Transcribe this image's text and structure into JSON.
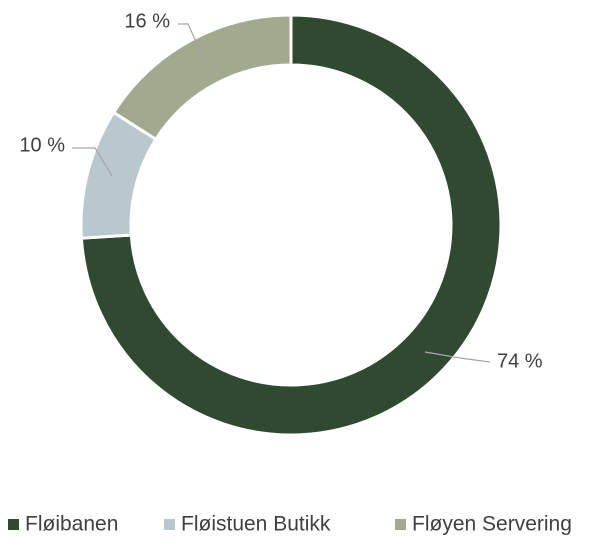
{
  "chart_data": {
    "type": "donut",
    "categories": [
      "Fløibanen",
      "Fløistuen Butikk",
      "Fløyen Servering"
    ],
    "values": [
      74,
      10,
      16
    ],
    "value_labels": [
      "74 %",
      "10 %",
      "16 %"
    ],
    "colors": [
      "#304a31",
      "#b9c8cf",
      "#a1a98f"
    ],
    "legend": "bottom"
  }
}
